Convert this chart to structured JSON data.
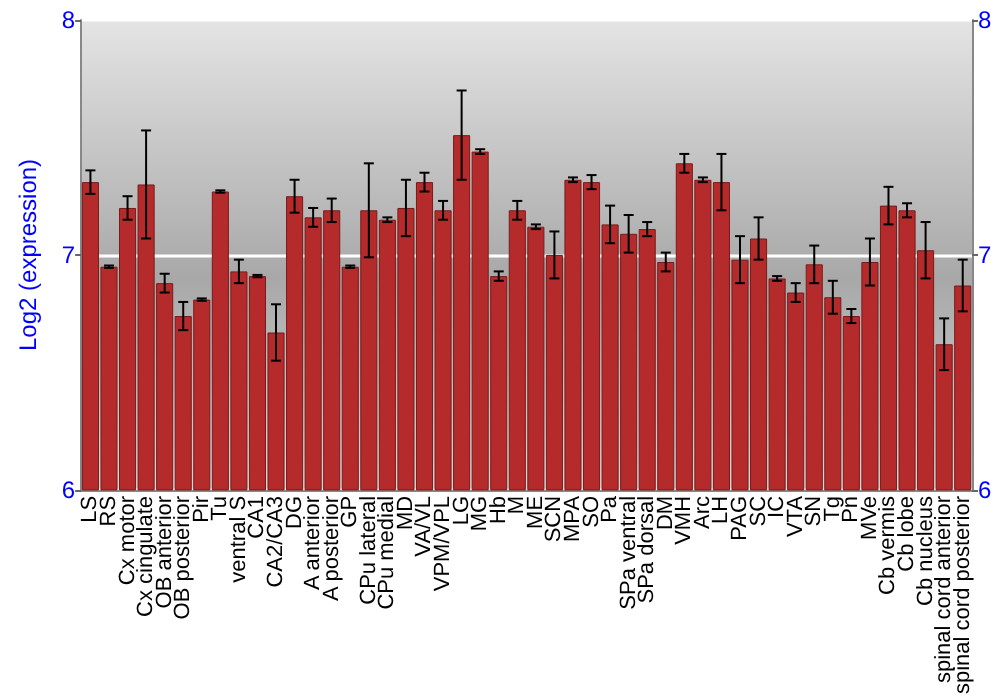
{
  "chart_data": {
    "type": "bar",
    "ylabel": "Log2 (expression)",
    "categories": [
      "LS",
      "RS",
      "Cx motor",
      "Cx cingulate",
      "OB anterior",
      "OB posterior",
      "Pir",
      "Tu",
      "ventral S",
      "CA1",
      "CA2/CA3",
      "DG",
      "A anterior",
      "A posterior",
      "GP",
      "CPu lateral",
      "CPu medial",
      "MD",
      "VA/VL",
      "VPM/VPL",
      "LG",
      "MG",
      "Hb",
      "M",
      "ME",
      "SCN",
      "MPA",
      "SO",
      "Pa",
      "SPa ventral",
      "SPa dorsal",
      "DM",
      "VMH",
      "Arc",
      "LH",
      "PAG",
      "SC",
      "IC",
      "VTA",
      "SN",
      "Tg",
      "Pn",
      "MVe",
      "Cb vermis",
      "Cb lobe",
      "Cb nucleus",
      "spinal cord anterior",
      "spinal cord posterior"
    ],
    "values": [
      7.31,
      6.95,
      7.2,
      7.3,
      6.88,
      6.74,
      6.81,
      7.27,
      6.93,
      6.91,
      6.67,
      7.25,
      7.16,
      7.19,
      6.95,
      7.19,
      7.15,
      7.2,
      7.31,
      7.19,
      7.51,
      7.44,
      6.91,
      7.19,
      7.12,
      7.0,
      7.32,
      7.31,
      7.13,
      7.09,
      7.11,
      6.97,
      7.39,
      7.32,
      7.31,
      6.98,
      7.07,
      6.9,
      6.84,
      6.96,
      6.82,
      6.74,
      6.97,
      7.21,
      7.19,
      7.02,
      6.62,
      6.87
    ],
    "errors": [
      0.05,
      0.005,
      0.05,
      0.23,
      0.04,
      0.06,
      0.005,
      0.005,
      0.05,
      0.005,
      0.12,
      0.07,
      0.04,
      0.05,
      0.005,
      0.2,
      0.01,
      0.12,
      0.04,
      0.04,
      0.19,
      0.01,
      0.02,
      0.04,
      0.01,
      0.1,
      0.01,
      0.03,
      0.08,
      0.08,
      0.03,
      0.04,
      0.04,
      0.01,
      0.12,
      0.1,
      0.09,
      0.01,
      0.04,
      0.08,
      0.07,
      0.03,
      0.1,
      0.08,
      0.03,
      0.12,
      0.11,
      0.11
    ],
    "color": "#b52b2b",
    "ylim": [
      6,
      8
    ],
    "yticks": [
      6,
      7,
      8
    ],
    "y2lim": [
      6,
      8
    ],
    "y2ticks": [
      6,
      7,
      8
    ],
    "grid": "y"
  }
}
